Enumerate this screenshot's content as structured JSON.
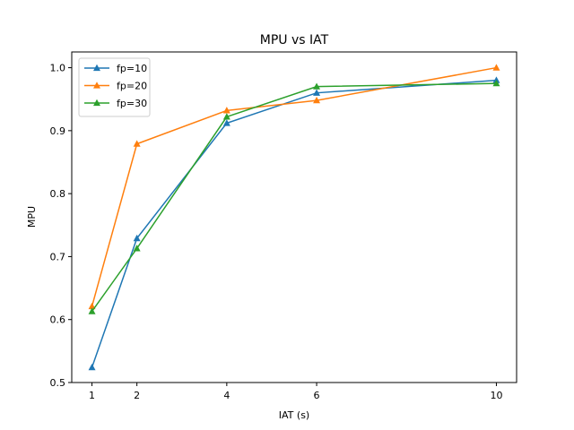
{
  "chart_data": {
    "type": "line",
    "title": "MPU vs IAT",
    "xlabel": "IAT (s)",
    "ylabel": "MPU",
    "x": [
      1,
      2,
      4,
      6,
      10
    ],
    "xticks": [
      1,
      2,
      4,
      6,
      10
    ],
    "yticks": [
      0.5,
      0.6,
      0.7,
      0.8,
      0.9,
      1.0
    ],
    "ytick_labels": [
      "0.5",
      "0.6",
      "0.7",
      "0.8",
      "0.9",
      "1.0"
    ],
    "xlim": [
      0.55,
      10.45
    ],
    "ylim": [
      0.5,
      1.025
    ],
    "grid": false,
    "legend_position": "top-left",
    "series": [
      {
        "name": "fp=10",
        "color": "#1f77b4",
        "marker": "triangle-up",
        "values": [
          0.524,
          0.729,
          0.912,
          0.96,
          0.98
        ]
      },
      {
        "name": "fp=20",
        "color": "#ff7f0e",
        "marker": "triangle-up",
        "values": [
          0.621,
          0.879,
          0.932,
          0.948,
          1.0
        ]
      },
      {
        "name": "fp=30",
        "color": "#2ca02c",
        "marker": "triangle-up",
        "values": [
          0.613,
          0.713,
          0.922,
          0.97,
          0.975
        ]
      }
    ]
  }
}
